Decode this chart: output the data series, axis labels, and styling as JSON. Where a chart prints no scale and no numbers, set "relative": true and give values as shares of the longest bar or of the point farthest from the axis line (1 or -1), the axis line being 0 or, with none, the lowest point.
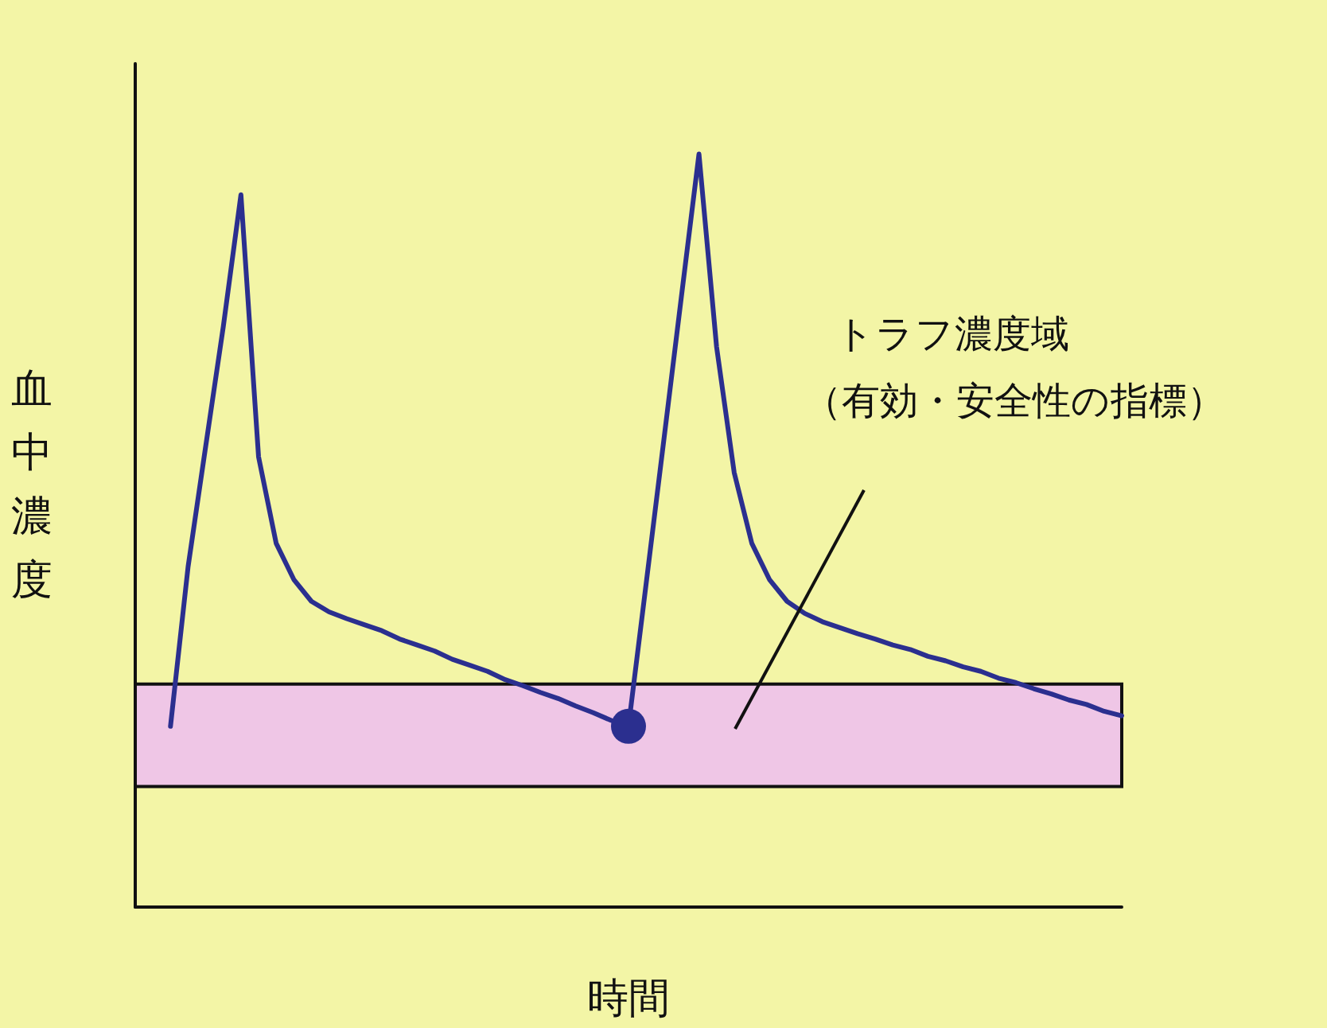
{
  "chart_data": {
    "type": "line",
    "relative": true,
    "xlabel": "時間",
    "ylabel": "血中濃度",
    "categories": [
      null,
      null,
      null,
      null,
      null,
      null,
      null,
      null,
      null,
      null,
      null,
      null,
      null,
      null,
      null,
      null,
      null,
      null,
      null,
      null,
      null,
      null,
      null,
      null,
      null,
      null,
      null,
      null,
      null,
      null,
      null,
      null,
      null,
      null,
      null,
      null,
      null,
      null,
      null,
      null,
      null,
      null,
      null,
      null,
      null,
      null,
      null,
      null,
      null,
      null,
      null,
      null,
      null,
      null,
      null,
      null,
      null
    ],
    "series": [
      {
        "color": "#2b2f8f",
        "values": [
          null,
          null,
          0.24,
          0.452,
          0.612,
          0.771,
          0.946,
          0.598,
          0.483,
          0.435,
          0.406,
          0.392,
          0.383,
          0.375,
          0.367,
          0.356,
          0.348,
          0.34,
          0.329,
          0.321,
          0.313,
          0.302,
          0.294,
          0.285,
          0.277,
          0.267,
          0.258,
          0.248,
          0.24,
          0.429,
          0.619,
          0.81,
          1,
          0.744,
          0.577,
          0.483,
          0.435,
          0.406,
          0.39,
          0.379,
          0.371,
          0.363,
          0.356,
          0.348,
          0.342,
          0.333,
          0.327,
          0.319,
          0.313,
          0.304,
          0.298,
          0.29,
          0.283,
          0.275,
          0.269,
          0.26,
          0.254
        ]
      }
    ],
    "bands": [
      {
        "axis": "y",
        "from": 0.16,
        "to": 0.296,
        "label": "トラフ濃度域",
        "color": "#efc6e6"
      }
    ],
    "annotations": [
      "（有効・安全性の指標）"
    ],
    "grid": false
  }
}
